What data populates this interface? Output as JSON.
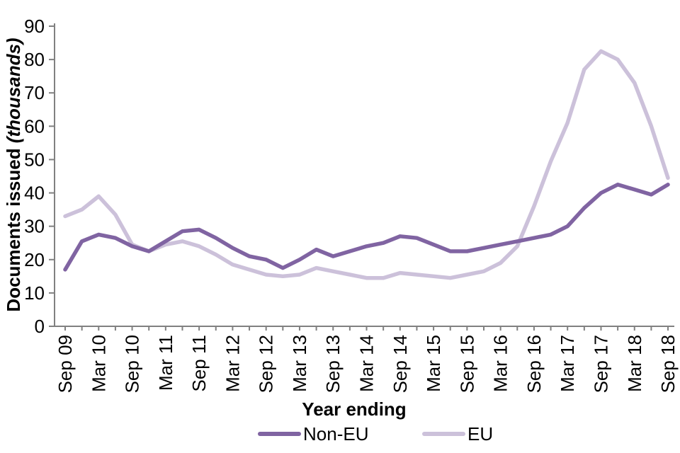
{
  "chart_data": {
    "type": "line",
    "xlabel": "Year ending",
    "ylabel_main": "Documents issued",
    "ylabel_unit": "(thousands)",
    "ylim": [
      0,
      90
    ],
    "y_ticks": [
      0,
      10,
      20,
      30,
      40,
      50,
      60,
      70,
      80,
      90
    ],
    "grid": false,
    "legend_position": "bottom-center",
    "label_every": 2,
    "categories": [
      "Sep 09",
      "Dec 09",
      "Mar 10",
      "Jun 10",
      "Sep 10",
      "Dec 10",
      "Mar 11",
      "Jun 11",
      "Sep 11",
      "Dec 11",
      "Mar 12",
      "Jun 12",
      "Sep 12",
      "Dec 12",
      "Mar 13",
      "Jun 13",
      "Sep 13",
      "Dec 13",
      "Mar 14",
      "Jun 14",
      "Sep 14",
      "Dec 14",
      "Mar 15",
      "Jun 15",
      "Sep 15",
      "Dec 15",
      "Mar 16",
      "Jun 16",
      "Sep 16",
      "Dec 16",
      "Mar 17",
      "Jun 17",
      "Sep 17",
      "Dec 17",
      "Mar 18",
      "Jun 18",
      "Sep 18"
    ],
    "visible_x_tick_labels": [
      "Sep 09",
      "Mar 10",
      "Sep 10",
      "Mar 11",
      "Sep 11",
      "Mar 12",
      "Sep 12",
      "Mar 13",
      "Sep 13",
      "Mar 14",
      "Sep 14",
      "Mar 15",
      "Sep 15",
      "Mar 16",
      "Sep 16",
      "Mar 17",
      "Sep 17",
      "Mar 18",
      "Sep 18"
    ],
    "series": [
      {
        "name": "Non-EU",
        "color": "#8064A2",
        "values": [
          17,
          25.5,
          27.5,
          26.5,
          24,
          22.5,
          25.5,
          28.5,
          29,
          26.5,
          23.5,
          21,
          20,
          17.5,
          20,
          23,
          21,
          22.5,
          24,
          25,
          27,
          26.5,
          24.5,
          22.5,
          22.5,
          23.5,
          24.5,
          25.5,
          26.5,
          27.5,
          30,
          35.5,
          40,
          42.5,
          41,
          39.5,
          42.5
        ]
      },
      {
        "name": "EU",
        "color": "#CCC1DA",
        "values": [
          33,
          35,
          39,
          33.5,
          24.5,
          22.5,
          24.5,
          25.5,
          24,
          21.5,
          18.5,
          17,
          15.5,
          15,
          15.5,
          17.5,
          16.5,
          15.5,
          14.5,
          14.5,
          16,
          15.5,
          15,
          14.5,
          15.5,
          16.5,
          19,
          24,
          36,
          49.5,
          61,
          77,
          82.5,
          80,
          73,
          60,
          44.5
        ]
      }
    ],
    "axis_color": "#808080",
    "text_color": "#000000"
  }
}
